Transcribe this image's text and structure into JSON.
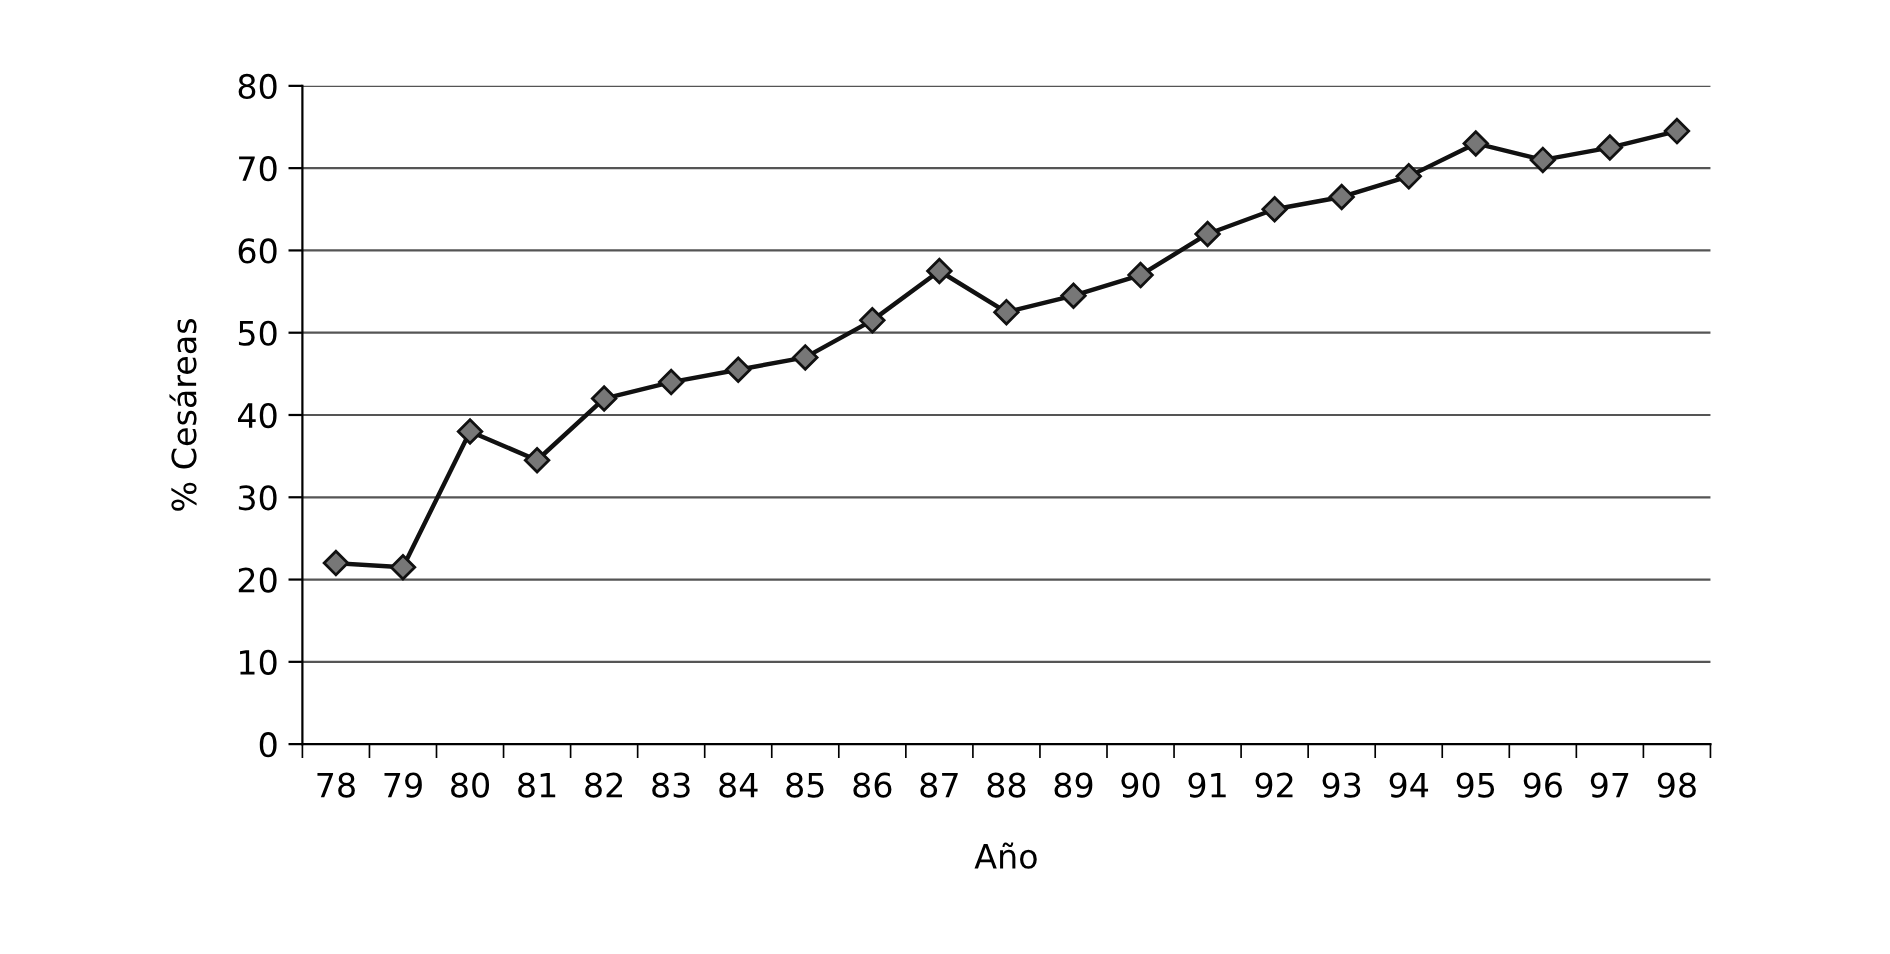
{
  "chart_data": {
    "type": "line",
    "xlabel": "Año",
    "ylabel": "% Cesáreas",
    "categories": [
      "78",
      "79",
      "80",
      "81",
      "82",
      "83",
      "84",
      "85",
      "86",
      "87",
      "88",
      "89",
      "90",
      "91",
      "92",
      "93",
      "94",
      "95",
      "96",
      "97",
      "98"
    ],
    "series": [
      {
        "color": "#111111",
        "values": [
          22,
          21.5,
          38,
          34.5,
          42,
          44,
          45.5,
          47,
          51.5,
          57.5,
          52.5,
          54.5,
          57,
          62,
          65,
          66.5,
          69,
          73,
          71,
          72.5,
          74.5
        ]
      }
    ],
    "ylim": [
      0,
      80
    ],
    "yticks": [
      0,
      10,
      20,
      30,
      40,
      50,
      60,
      70,
      80
    ],
    "grid": "y",
    "marker": "diamond",
    "line_style": "solid",
    "legend": false
  }
}
